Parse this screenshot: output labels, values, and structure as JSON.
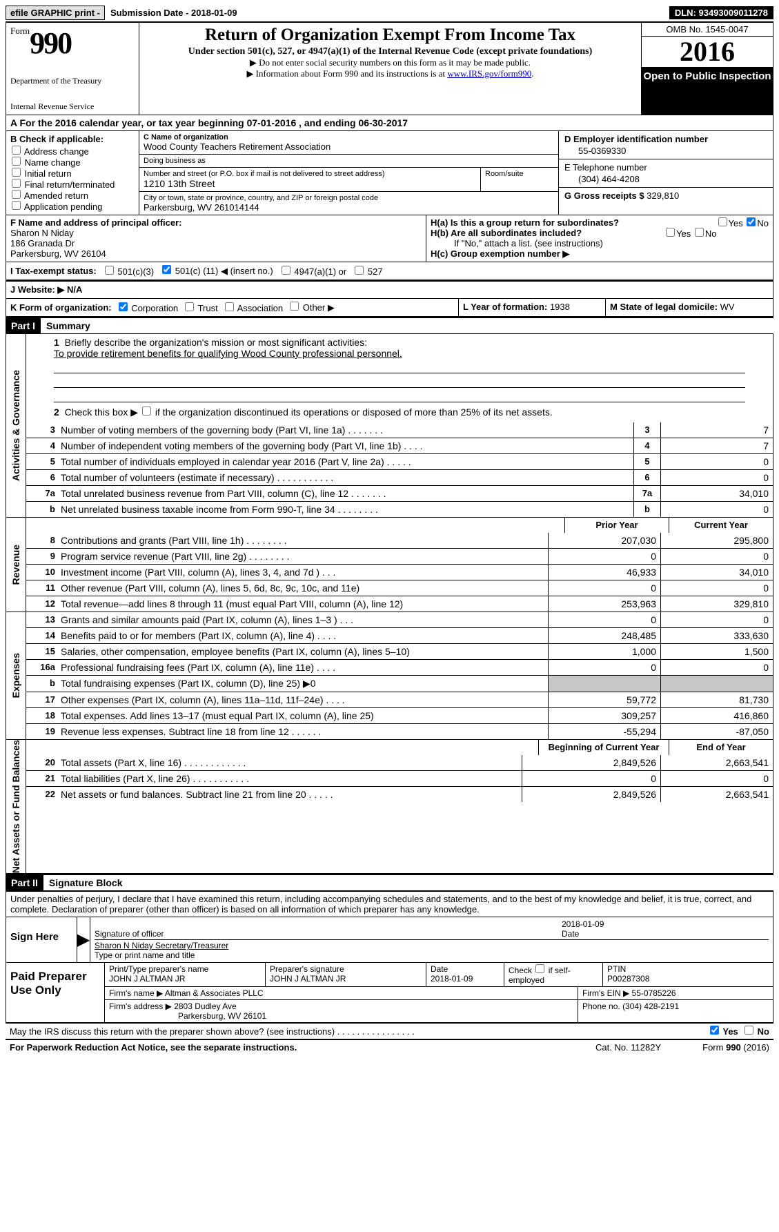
{
  "top": {
    "efile": "efile GRAPHIC print - ",
    "submission_label": "Submission Date - ",
    "submission_date": "2018-01-09",
    "dln_label": "DLN: ",
    "dln": "93493009011278"
  },
  "header": {
    "form_prefix": "Form",
    "form_number": "990",
    "dept": "Department of the Treasury",
    "irs": "Internal Revenue Service",
    "title": "Return of Organization Exempt From Income Tax",
    "subtitle": "Under section 501(c), 527, or 4947(a)(1) of the Internal Revenue Code (except private foundations)",
    "note1": "▶ Do not enter social security numbers on this form as it may be made public.",
    "note2_pre": "▶ Information about Form 990 and its instructions is at ",
    "note2_link": "www.IRS.gov/form990",
    "omb": "OMB No. 1545-0047",
    "year": "2016",
    "open": "Open to Public Inspection"
  },
  "rowA": "A  For the 2016 calendar year, or tax year beginning 07-01-2016   , and ending 06-30-2017",
  "colB": {
    "label": "B Check if applicable:",
    "items": [
      "Address change",
      "Name change",
      "Initial return",
      "Final return/terminated",
      "Amended return",
      "Application pending"
    ]
  },
  "colC": {
    "name_label": "C Name of organization",
    "name": "Wood County Teachers Retirement Association",
    "dba_label": "Doing business as",
    "dba": "",
    "street_label": "Number and street (or P.O. box if mail is not delivered to street address)",
    "street": "1210 13th Street",
    "room_label": "Room/suite",
    "room": "",
    "city_label": "City or town, state or province, country, and ZIP or foreign postal code",
    "city": "Parkersburg, WV  261014144"
  },
  "colD": {
    "ein_label": "D Employer identification number",
    "ein": "55-0369330",
    "tel_label": "E Telephone number",
    "tel": "(304) 464-4208",
    "gross_label": "G Gross receipts $ ",
    "gross": "329,810"
  },
  "colF": {
    "label": "F  Name and address of principal officer:",
    "name": "Sharon N Niday",
    "addr1": "186 Granada Dr",
    "addr2": "Parkersburg, WV  26104"
  },
  "colH": {
    "ha": "H(a)  Is this a group return for subordinates?",
    "hb": "H(b)  Are all subordinates included?",
    "hb_note": "If \"No,\" attach a list. (see instructions)",
    "hc": "H(c)  Group exemption number ▶",
    "yes": "Yes",
    "no": "No"
  },
  "rowI": {
    "label": "I  Tax-exempt status:",
    "c3": "501(c)(3)",
    "c_pre": "501(c) (",
    "c_num": "11",
    "c_post": ") ◀ (insert no.)",
    "c4947": "4947(a)(1) or",
    "c527": "527"
  },
  "rowJ": "J  Website: ▶  N/A",
  "rowK": {
    "label": "K Form of organization:",
    "corp": "Corporation",
    "trust": "Trust",
    "assoc": "Association",
    "other": "Other ▶",
    "L_label": "L Year of formation: ",
    "L_val": "1938",
    "M_label": "M State of legal domicile: ",
    "M_val": "WV"
  },
  "part1": {
    "hdr": "Part I",
    "title": "Summary",
    "side_ag": "Activities & Governance",
    "side_rev": "Revenue",
    "side_exp": "Expenses",
    "side_net": "Net Assets or Fund Balances",
    "l1": "Briefly describe the organization's mission or most significant activities:",
    "l1_text": "To provide retirement benefits for qualifying Wood County professional personnel.",
    "l2": "Check this box ▶        if the organization discontinued its operations or disposed of more than 25% of its net assets.",
    "lines_ag": [
      {
        "n": "3",
        "t": "Number of voting members of the governing body (Part VI, line 1a)   .    .    .    .    .    .    .",
        "v": "7"
      },
      {
        "n": "4",
        "t": "Number of independent voting members of the governing body (Part VI, line 1b)    .    .    .    .",
        "v": "7"
      },
      {
        "n": "5",
        "t": "Total number of individuals employed in calendar year 2016 (Part V, line 2a)    .    .    .    .    .",
        "v": "0"
      },
      {
        "n": "6",
        "t": "Total number of volunteers (estimate if necessary)   .    .    .    .    .    .    .    .    .    .    .",
        "v": "0"
      },
      {
        "n": "7a",
        "t": "Total unrelated business revenue from Part VIII, column (C), line 12    .    .    .    .    .    .    .",
        "v": "34,010"
      },
      {
        "n": "b",
        "t": "Net unrelated business taxable income from Form 990-T, line 34   .    .    .    .    .    .    .    .",
        "v": "0"
      }
    ],
    "col_prior": "Prior Year",
    "col_current": "Current Year",
    "lines_rev": [
      {
        "n": "8",
        "t": "Contributions and grants (Part VIII, line 1h)    .    .    .    .    .    .    .    .",
        "p": "207,030",
        "c": "295,800"
      },
      {
        "n": "9",
        "t": "Program service revenue (Part VIII, line 2g)    .    .    .    .    .    .    .    .",
        "p": "0",
        "c": "0"
      },
      {
        "n": "10",
        "t": "Investment income (Part VIII, column (A), lines 3, 4, and 7d )    .    .    .",
        "p": "46,933",
        "c": "34,010"
      },
      {
        "n": "11",
        "t": "Other revenue (Part VIII, column (A), lines 5, 6d, 8c, 9c, 10c, and 11e)",
        "p": "0",
        "c": "0"
      },
      {
        "n": "12",
        "t": "Total revenue—add lines 8 through 11 (must equal Part VIII, column (A), line 12)",
        "p": "253,963",
        "c": "329,810"
      }
    ],
    "lines_exp": [
      {
        "n": "13",
        "t": "Grants and similar amounts paid (Part IX, column (A), lines 1–3 )   .    .    .",
        "p": "0",
        "c": "0"
      },
      {
        "n": "14",
        "t": "Benefits paid to or for members (Part IX, column (A), line 4)   .    .    .    .",
        "p": "248,485",
        "c": "333,630"
      },
      {
        "n": "15",
        "t": "Salaries, other compensation, employee benefits (Part IX, column (A), lines 5–10)",
        "p": "1,000",
        "c": "1,500"
      },
      {
        "n": "16a",
        "t": "Professional fundraising fees (Part IX, column (A), line 11e)    .    .    .    .",
        "p": "0",
        "c": "0"
      },
      {
        "n": "b",
        "t": "Total fundraising expenses (Part IX, column (D), line 25) ▶0",
        "p": "",
        "c": "",
        "shade": true
      },
      {
        "n": "17",
        "t": "Other expenses (Part IX, column (A), lines 11a–11d, 11f–24e)    .    .    .    .",
        "p": "59,772",
        "c": "81,730"
      },
      {
        "n": "18",
        "t": "Total expenses. Add lines 13–17 (must equal Part IX, column (A), line 25)",
        "p": "309,257",
        "c": "416,860"
      },
      {
        "n": "19",
        "t": "Revenue less expenses. Subtract line 18 from line 12    .    .    .    .    .    .",
        "p": "-55,294",
        "c": "-87,050"
      }
    ],
    "col_beg": "Beginning of Current Year",
    "col_end": "End of Year",
    "lines_net": [
      {
        "n": "20",
        "t": "Total assets (Part X, line 16)   .    .    .    .    .    .    .    .    .    .    .    .",
        "p": "2,849,526",
        "c": "2,663,541"
      },
      {
        "n": "21",
        "t": "Total liabilities (Part X, line 26)   .    .    .    .    .    .    .    .    .    .    .",
        "p": "0",
        "c": "0"
      },
      {
        "n": "22",
        "t": "Net assets or fund balances. Subtract line 21 from line 20 .    .    .    .    .",
        "p": "2,849,526",
        "c": "2,663,541"
      }
    ]
  },
  "part2": {
    "hdr": "Part II",
    "title": "Signature Block",
    "perjury": "Under penalties of perjury, I declare that I have examined this return, including accompanying schedules and statements, and to the best of my knowledge and belief, it is true, correct, and complete. Declaration of preparer (other than officer) is based on all information of which preparer has any knowledge.",
    "sign_here": "Sign Here",
    "sig_label": "Signature of officer",
    "date_label": "Date",
    "date_val": "2018-01-09",
    "name_label": "Type or print name and title",
    "name_val": "Sharon N Niday  Secretary/Treasurer"
  },
  "prep": {
    "label": "Paid Preparer Use Only",
    "pt_label": "Print/Type preparer's name",
    "pt_val": "JOHN J ALTMAN JR",
    "sig_label": "Preparer's signature",
    "sig_val": "JOHN J ALTMAN JR",
    "date_label": "Date",
    "date_val": "2018-01-09",
    "check_label": "Check         if self-employed",
    "ptin_label": "PTIN",
    "ptin_val": "P00287308",
    "firm_name_label": "Firm's name      ▶ ",
    "firm_name": "Altman & Associates PLLC",
    "firm_ein_label": "Firm's EIN ▶ ",
    "firm_ein": "55-0785226",
    "firm_addr_label": "Firm's address ▶ ",
    "firm_addr1": "2803 Dudley Ave",
    "firm_addr2": "Parkersburg, WV  26101",
    "phone_label": "Phone no. ",
    "phone": "(304) 428-2191"
  },
  "footer": {
    "discuss": "May the IRS discuss this return with the preparer shown above? (see instructions)    .    .    .    .    .    .    .    .    .    .    .    .    .    .    .    .",
    "yes": "Yes",
    "no": "No",
    "pra": "For Paperwork Reduction Act Notice, see the separate instructions.",
    "cat": "Cat. No. 11282Y",
    "form": "Form 990 (2016)"
  }
}
